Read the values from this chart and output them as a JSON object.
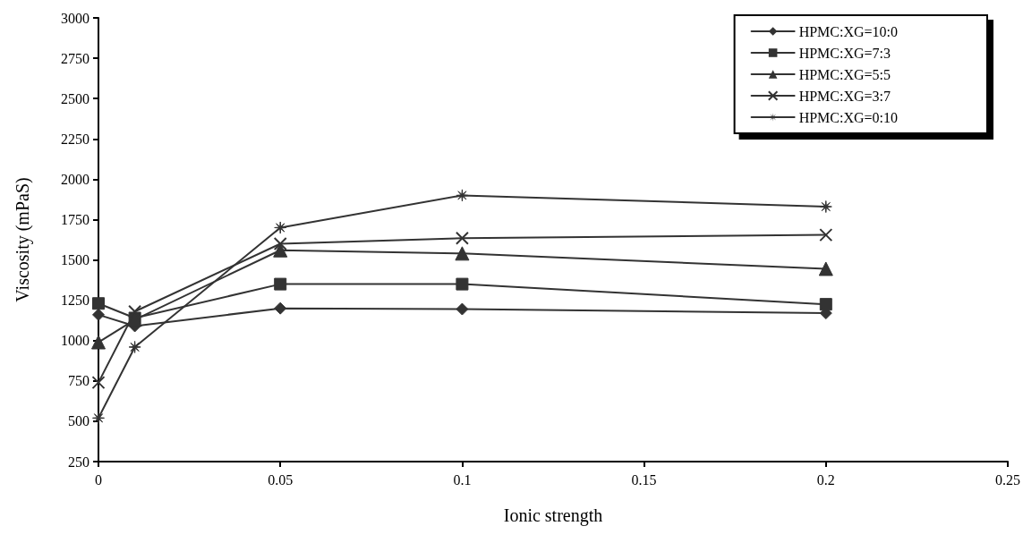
{
  "chart_data": {
    "type": "line",
    "xlabel": "Ionic strength",
    "ylabel": "Viscosity (mPaS)",
    "x": [
      0,
      0.01,
      0.05,
      0.1,
      0.2
    ],
    "xlim": [
      0,
      0.25
    ],
    "xticks": [
      0,
      0.05,
      0.1,
      0.15,
      0.2,
      0.25
    ],
    "ylim": [
      250,
      3000
    ],
    "yticks": [
      250,
      500,
      750,
      1000,
      1250,
      1500,
      1750,
      2000,
      2250,
      2500,
      2750,
      3000
    ],
    "grid": false,
    "legend": "top right",
    "line_style": "solid",
    "series": [
      {
        "name": "HPMC:XG=10:0",
        "color": "#333333",
        "marker": "diamond",
        "values": [
          1160,
          1090,
          1200,
          1195,
          1170
        ]
      },
      {
        "name": "HPMC:XG=7:3",
        "color": "#333333",
        "marker": "square",
        "values": [
          1230,
          1140,
          1350,
          1350,
          1225
        ]
      },
      {
        "name": "HPMC:XG=5:5",
        "color": "#333333",
        "marker": "triangle",
        "values": [
          990,
          1130,
          1560,
          1540,
          1445
        ]
      },
      {
        "name": "HPMC:XG=3:7",
        "color": "#333333",
        "marker": "cross",
        "values": [
          740,
          1180,
          1600,
          1635,
          1655
        ]
      },
      {
        "name": "HPMC:XG=0:10",
        "color": "#333333",
        "marker": "star",
        "values": [
          520,
          960,
          1700,
          1900,
          1830
        ]
      }
    ]
  }
}
